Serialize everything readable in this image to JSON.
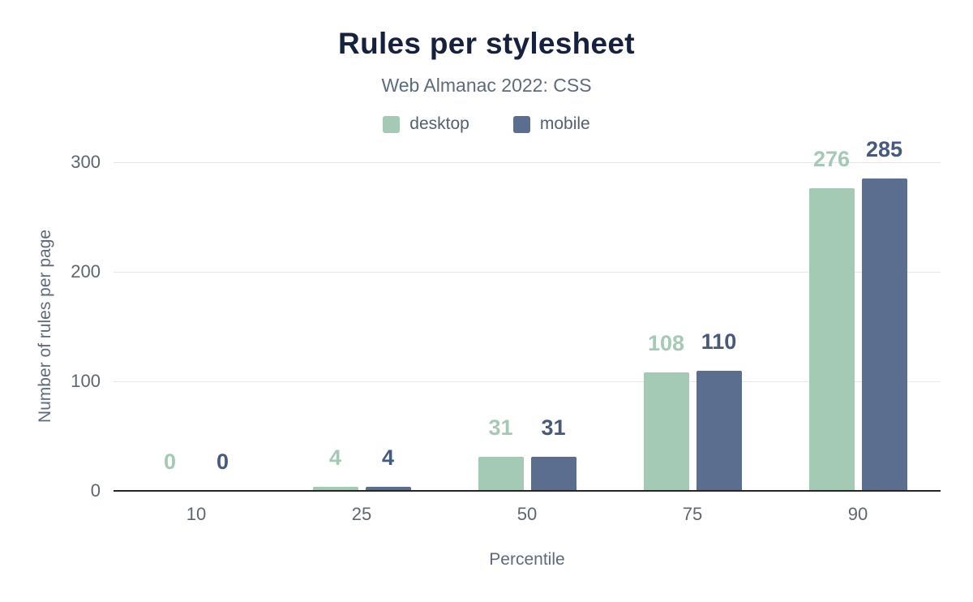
{
  "chart_data": {
    "type": "bar",
    "title": "Rules per stylesheet",
    "subtitle": "Web Almanac 2022: CSS",
    "xlabel": "Percentile",
    "ylabel": "Number of rules per page",
    "categories": [
      "10",
      "25",
      "50",
      "75",
      "90"
    ],
    "series": [
      {
        "name": "desktop",
        "color": "#a4c9b5",
        "label_color": "#a4c9b5",
        "values": [
          0,
          4,
          31,
          108,
          276
        ]
      },
      {
        "name": "mobile",
        "color": "#5b6e8f",
        "label_color": "#47597c",
        "values": [
          0,
          4,
          31,
          110,
          285
        ]
      }
    ],
    "ylim": [
      0,
      300
    ],
    "yticks": [
      0,
      100,
      200,
      300
    ],
    "grid": true,
    "legend_position": "top",
    "colors": {
      "title_text": "#16213e",
      "muted_text": "#5e6b7c",
      "gridline": "#e7e7e7",
      "axis_line": "#262626"
    }
  }
}
